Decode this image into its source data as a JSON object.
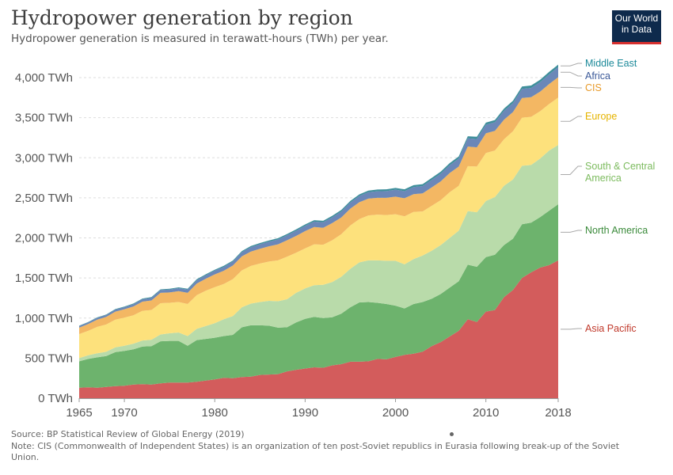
{
  "header": {
    "title": "Hydropower generation by region",
    "subtitle": "Hydropower generation is measured in terawatt-hours (TWh) per year."
  },
  "logo": {
    "line1": "Our World",
    "line2": "in Data"
  },
  "footer": {
    "source": "Source: BP Statistical Review of Global Energy (2019)",
    "note": "Note: CIS (Commonwealth of Independent States) is an organization of ten post-Soviet republics in Eurasia following break-up of the Soviet Union."
  },
  "chart_data": {
    "type": "area",
    "stacked": true,
    "title": "Hydropower generation by region",
    "xlabel": "",
    "ylabel": "",
    "ylim": [
      0,
      4200
    ],
    "xlim": [
      1965,
      2018
    ],
    "yticks": [
      {
        "value": 0,
        "label": "0 TWh"
      },
      {
        "value": 500,
        "label": "500 TWh"
      },
      {
        "value": 1000,
        "label": "1,000 TWh"
      },
      {
        "value": 1500,
        "label": "1,500 TWh"
      },
      {
        "value": 2000,
        "label": "2,000 TWh"
      },
      {
        "value": 2500,
        "label": "2,500 TWh"
      },
      {
        "value": 3000,
        "label": "3,000 TWh"
      },
      {
        "value": 3500,
        "label": "3,500 TWh"
      },
      {
        "value": 4000,
        "label": "4,000 TWh"
      }
    ],
    "xticks": [
      {
        "value": 1965,
        "label": "1965"
      },
      {
        "value": 1970,
        "label": "1970"
      },
      {
        "value": 1980,
        "label": "1980"
      },
      {
        "value": 1990,
        "label": "1990"
      },
      {
        "value": 2000,
        "label": "2000"
      },
      {
        "value": 2010,
        "label": "2010"
      },
      {
        "value": 2018,
        "label": "2018"
      }
    ],
    "grid": "horizontal",
    "x": [
      1965,
      1966,
      1967,
      1968,
      1969,
      1970,
      1971,
      1972,
      1973,
      1974,
      1975,
      1976,
      1977,
      1978,
      1979,
      1980,
      1981,
      1982,
      1983,
      1984,
      1985,
      1986,
      1987,
      1988,
      1989,
      1990,
      1991,
      1992,
      1993,
      1994,
      1995,
      1996,
      1997,
      1998,
      1999,
      2000,
      2001,
      2002,
      2003,
      2004,
      2005,
      2006,
      2007,
      2008,
      2009,
      2010,
      2011,
      2012,
      2013,
      2014,
      2015,
      2016,
      2017,
      2018
    ],
    "series": [
      {
        "name": "Asia Pacific",
        "color": "#d35c5c",
        "label_color": "#c0392b",
        "values": [
          130,
          135,
          130,
          140,
          150,
          155,
          170,
          175,
          170,
          185,
          195,
          195,
          195,
          205,
          220,
          235,
          255,
          250,
          265,
          270,
          290,
          295,
          300,
          335,
          355,
          370,
          385,
          380,
          410,
          425,
          455,
          455,
          460,
          490,
          485,
          515,
          540,
          555,
          580,
          650,
          700,
          770,
          840,
          985,
          950,
          1080,
          1100,
          1260,
          1350,
          1500,
          1570,
          1630,
          1660,
          1720
        ]
      },
      {
        "name": "North America",
        "color": "#6db36d",
        "label_color": "#3a8a3a",
        "values": [
          330,
          355,
          380,
          385,
          425,
          435,
          440,
          470,
          480,
          525,
          520,
          520,
          460,
          520,
          520,
          520,
          520,
          540,
          620,
          640,
          620,
          610,
          580,
          550,
          590,
          620,
          630,
          620,
          600,
          630,
          680,
          740,
          740,
          700,
          690,
          640,
          580,
          620,
          620,
          590,
          600,
          610,
          620,
          680,
          690,
          680,
          690,
          650,
          640,
          670,
          620,
          630,
          680,
          700
        ]
      },
      {
        "name": "South & Central America",
        "color": "#b9dbaa",
        "label_color": "#7cbb5e",
        "values": [
          40,
          45,
          50,
          55,
          60,
          65,
          70,
          75,
          80,
          85,
          95,
          105,
          120,
          140,
          160,
          180,
          210,
          235,
          250,
          270,
          290,
          310,
          330,
          350,
          370,
          380,
          395,
          415,
          440,
          460,
          480,
          500,
          520,
          530,
          540,
          560,
          550,
          560,
          580,
          600,
          610,
          620,
          630,
          670,
          680,
          700,
          720,
          740,
          740,
          730,
          720,
          730,
          750,
          740
        ]
      },
      {
        "name": "Europe",
        "color": "#fde17c",
        "label_color": "#e6b400",
        "values": [
          300,
          305,
          330,
          340,
          345,
          350,
          355,
          370,
          370,
          390,
          380,
          380,
          400,
          420,
          440,
          450,
          440,
          460,
          460,
          470,
          480,
          490,
          510,
          530,
          500,
          500,
          510,
          500,
          520,
          530,
          540,
          540,
          560,
          570,
          570,
          580,
          600,
          590,
          550,
          560,
          560,
          570,
          560,
          560,
          570,
          600,
          580,
          580,
          600,
          600,
          600,
          590,
          580,
          590
        ]
      },
      {
        "name": "CIS",
        "color": "#f3b763",
        "label_color": "#e89a2a",
        "values": [
          80,
          85,
          90,
          95,
          100,
          105,
          110,
          115,
          120,
          130,
          130,
          135,
          140,
          145,
          150,
          160,
          165,
          170,
          175,
          180,
          185,
          190,
          200,
          205,
          210,
          215,
          215,
          210,
          215,
          210,
          210,
          210,
          210,
          210,
          215,
          220,
          225,
          220,
          225,
          230,
          235,
          240,
          240,
          245,
          240,
          245,
          245,
          245,
          240,
          245,
          245,
          245,
          250,
          255
        ]
      },
      {
        "name": "Africa",
        "color": "#6b87b8",
        "label_color": "#3b5998",
        "values": [
          20,
          21,
          22,
          23,
          25,
          26,
          28,
          30,
          32,
          34,
          36,
          38,
          40,
          42,
          44,
          46,
          48,
          50,
          52,
          54,
          56,
          58,
          60,
          62,
          64,
          66,
          68,
          70,
          72,
          74,
          76,
          78,
          80,
          82,
          84,
          86,
          88,
          90,
          92,
          94,
          96,
          98,
          100,
          102,
          104,
          106,
          108,
          110,
          112,
          114,
          116,
          118,
          120,
          125
        ]
      },
      {
        "name": "Middle East",
        "color": "#3e8f9b",
        "label_color": "#1d8a9a",
        "values": [
          5,
          5,
          6,
          6,
          7,
          7,
          8,
          8,
          9,
          9,
          10,
          10,
          11,
          11,
          12,
          12,
          13,
          13,
          14,
          14,
          15,
          15,
          16,
          16,
          17,
          17,
          18,
          18,
          19,
          19,
          20,
          20,
          21,
          21,
          22,
          22,
          23,
          23,
          24,
          24,
          25,
          25,
          26,
          26,
          27,
          27,
          28,
          28,
          29,
          29,
          30,
          30,
          31,
          32
        ]
      }
    ]
  }
}
